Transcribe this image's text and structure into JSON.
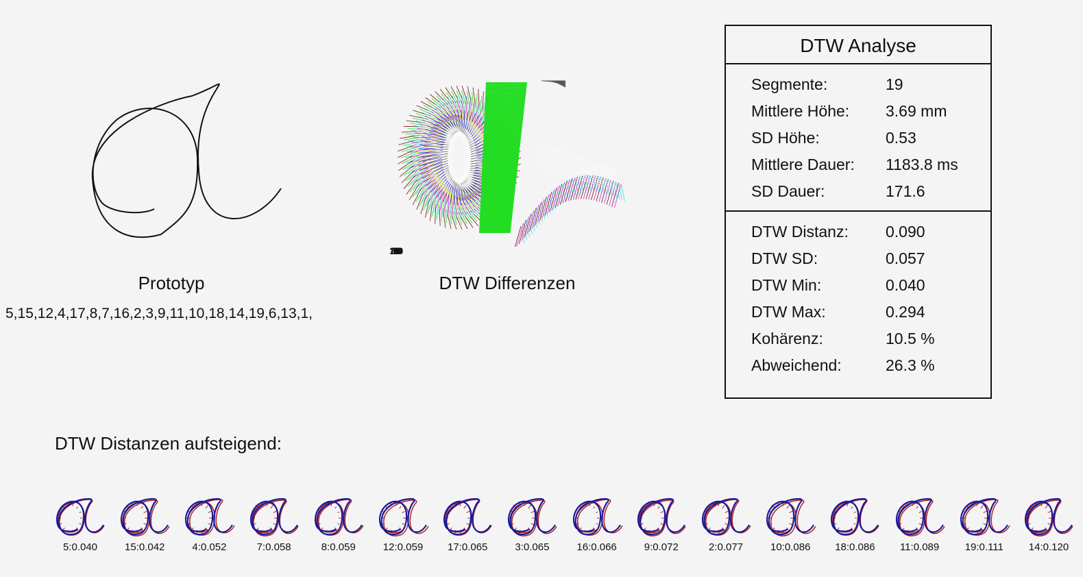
{
  "prototype": {
    "title": "Prototyp",
    "segment_order": "5,15,12,4,17,8,7,16,2,3,9,11,10,18,14,19,6,13,1,"
  },
  "differences": {
    "title": "DTW Differenzen",
    "overlap_text": "18100000",
    "series_colors": [
      "#7a1010",
      "#22dd22",
      "#22dddd",
      "#dd22dd",
      "#dddd22",
      "#2222cc",
      "#555555",
      "#ffffff"
    ]
  },
  "analysis": {
    "title": "DTW Analyse",
    "stats": [
      {
        "label": "Segmente:",
        "value": "19"
      },
      {
        "label": "Mittlere Höhe:",
        "value": "3.69 mm"
      },
      {
        "label": "SD Höhe:",
        "value": "0.53"
      },
      {
        "label": "Mittlere Dauer:",
        "value": "1183.8 ms"
      },
      {
        "label": "SD Dauer:",
        "value": "171.6"
      }
    ],
    "dtw": [
      {
        "label": "DTW Distanz:",
        "value": "0.090"
      },
      {
        "label": "DTW SD:",
        "value": "0.057"
      },
      {
        "label": "DTW Min:",
        "value": "0.040"
      },
      {
        "label": "DTW Max:",
        "value": "0.294"
      },
      {
        "label": "Kohärenz:",
        "value": "10.5 %"
      },
      {
        "label": "Abweichend:",
        "value": "26.3 %"
      }
    ]
  },
  "ranking": {
    "heading": "DTW Distanzen aufsteigend:",
    "items": [
      {
        "label": "5:0.040"
      },
      {
        "label": "15:0.042"
      },
      {
        "label": "4:0.052"
      },
      {
        "label": "7:0.058"
      },
      {
        "label": "8:0.059"
      },
      {
        "label": "12:0.059"
      },
      {
        "label": "17:0.065"
      },
      {
        "label": "3:0.065"
      },
      {
        "label": "16:0.066"
      },
      {
        "label": "9:0.072"
      },
      {
        "label": "2:0.077"
      },
      {
        "label": "10:0.086"
      },
      {
        "label": "18:0.086"
      },
      {
        "label": "11:0.089"
      },
      {
        "label": "19:0.111"
      },
      {
        "label": "14:0.120"
      }
    ],
    "trace_color": "#1a1a99",
    "diff_color": "#b02020"
  }
}
